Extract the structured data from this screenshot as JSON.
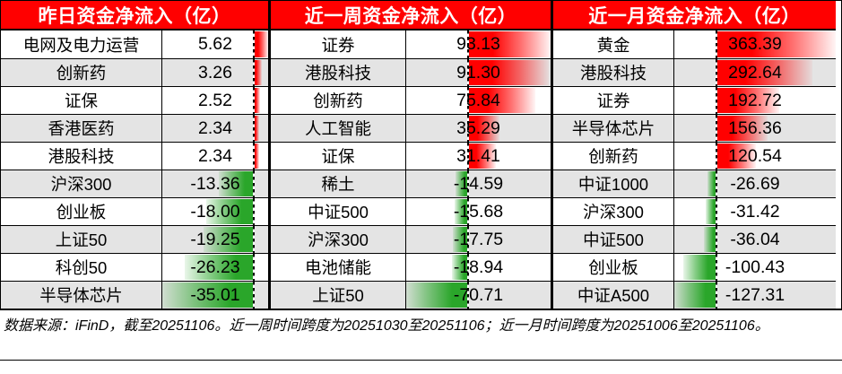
{
  "chart_data": [
    {
      "type": "bar",
      "title": "昨日资金净流入（亿）",
      "categories": [
        "电网及电力运营",
        "创新药",
        "证保",
        "香港医药",
        "港股科技",
        "沪深300",
        "创业板",
        "上证50",
        "科创50",
        "半导体芯片"
      ],
      "values": [
        5.62,
        3.26,
        2.52,
        2.34,
        2.34,
        -13.36,
        -18.0,
        -19.25,
        -26.23,
        -35.01
      ],
      "value_labels": [
        "5.62",
        "3.26",
        "2.52",
        "2.34",
        "2.34",
        "-13.36",
        "-18.00",
        "-19.25",
        "-26.23",
        "-35.01"
      ],
      "xlabel": "",
      "ylabel": "",
      "orientation": "horizontal",
      "positive_color": "#ff0000",
      "negative_color": "#2aa62a"
    },
    {
      "type": "bar",
      "title": "近一周资金净流入（亿）",
      "categories": [
        "证券",
        "港股科技",
        "创新药",
        "人工智能",
        "证保",
        "稀土",
        "中证500",
        "沪深300",
        "电池储能",
        "上证50"
      ],
      "values": [
        93.13,
        91.3,
        75.84,
        35.29,
        31.41,
        -14.59,
        -15.68,
        -17.75,
        -18.94,
        -70.71
      ],
      "value_labels": [
        "93.13",
        "91.30",
        "75.84",
        "35.29",
        "31.41",
        "-14.59",
        "-15.68",
        "-17.75",
        "-18.94",
        "-70.71"
      ],
      "xlabel": "",
      "ylabel": "",
      "orientation": "horizontal",
      "positive_color": "#ff0000",
      "negative_color": "#2aa62a"
    },
    {
      "type": "bar",
      "title": "近一月资金净流入（亿）",
      "categories": [
        "黄金",
        "港股科技",
        "证券",
        "半导体芯片",
        "创新药",
        "中证1000",
        "沪深300",
        "中证500",
        "创业板",
        "中证A500"
      ],
      "values": [
        363.39,
        292.64,
        192.72,
        156.36,
        120.54,
        -26.69,
        -31.42,
        -36.04,
        -100.43,
        -127.31
      ],
      "value_labels": [
        "363.39",
        "292.64",
        "192.72",
        "156.36",
        "120.54",
        "-26.69",
        "-31.42",
        "-36.04",
        "-100.43",
        "-127.31"
      ],
      "xlabel": "",
      "ylabel": "",
      "orientation": "horizontal",
      "positive_color": "#ff0000",
      "negative_color": "#2aa62a"
    }
  ],
  "footer": {
    "source_note": "数据来源：iFinD，截至20251106。近一周时间跨度为20251030至20251106；近一月时间跨度为20251006至20251106。"
  },
  "colors": {
    "header_bg": "#ff0000",
    "header_text": "#ffffff",
    "positive_bar": "#ff0000",
    "negative_bar": "#2aa62a",
    "alt_row_bg": "#e4e4e4",
    "grid_border": "#000000"
  }
}
